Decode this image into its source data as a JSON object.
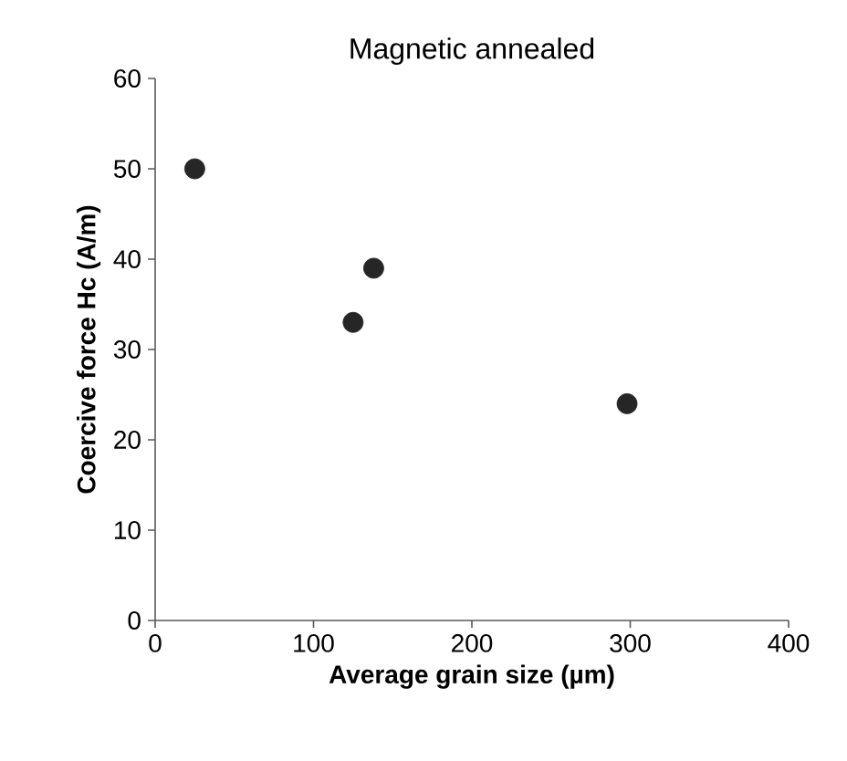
{
  "chart_data": {
    "type": "scatter",
    "title": "Magnetic annealed",
    "xlabel": "Average grain size  (µm)",
    "ylabel": "Coercive force Hc  (A/m)",
    "x": [
      25,
      125,
      138,
      298
    ],
    "values": [
      50,
      33,
      39,
      24
    ],
    "color": "#262626",
    "marker": "circle",
    "xlim": [
      0,
      400
    ],
    "ylim": [
      0,
      60
    ],
    "xticks": [
      0,
      100,
      200,
      300,
      400
    ],
    "yticks": [
      0,
      10,
      20,
      30,
      40,
      50,
      60
    ]
  }
}
